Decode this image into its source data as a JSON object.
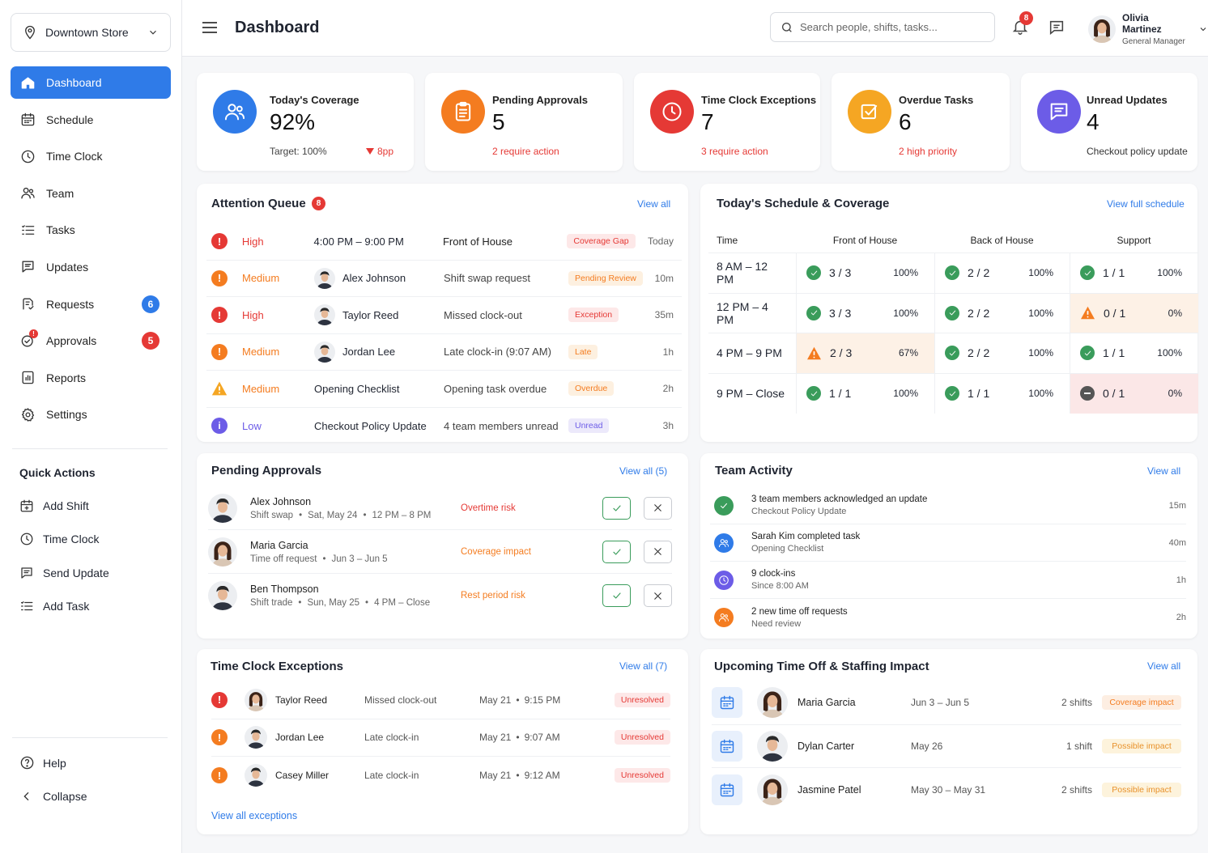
{
  "sidebar": {
    "store": "Downtown Store",
    "nav": [
      {
        "label": "Dashboard",
        "icon": "home-icon"
      },
      {
        "label": "Schedule",
        "icon": "calendar-icon"
      },
      {
        "label": "Time Clock",
        "icon": "clock-icon"
      },
      {
        "label": "Team",
        "icon": "team-icon"
      },
      {
        "label": "Tasks",
        "icon": "tasks-icon"
      },
      {
        "label": "Updates",
        "icon": "updates-icon"
      },
      {
        "label": "Requests",
        "icon": "requests-icon",
        "badge": "6"
      },
      {
        "label": "Approvals",
        "icon": "approvals-icon",
        "badge": "5",
        "dot": "!"
      },
      {
        "label": "Reports",
        "icon": "reports-icon"
      },
      {
        "label": "Settings",
        "icon": "gear-icon"
      }
    ],
    "quick_actions_title": "Quick Actions",
    "quick_actions": [
      {
        "label": "Add Shift",
        "icon": "calendar-add-icon"
      },
      {
        "label": "Time Clock",
        "icon": "clock-icon"
      },
      {
        "label": "Send Update",
        "icon": "send-update-icon"
      },
      {
        "label": "Add Task",
        "icon": "tasks-icon"
      }
    ],
    "help": "Help",
    "collapse": "Collapse"
  },
  "header": {
    "title": "Dashboard",
    "search_placeholder": "Search people, shifts, tasks...",
    "notif_count": "8",
    "user_name": "Olivia Martinez",
    "user_role": "General Manager"
  },
  "colors": {
    "blue": "#2f7be8",
    "orange": "#f47c20",
    "red": "#e53935",
    "amber": "#f5a623",
    "purple": "#6c5ce7",
    "green": "#3a9c5b"
  },
  "stats": [
    {
      "label": "Today's Coverage",
      "value": "92%",
      "sub": "Target: 100%",
      "delta": "8pp",
      "icon": "team-icon",
      "color": "#2f7be8"
    },
    {
      "label": "Pending Approvals",
      "value": "5",
      "sub": "2 require action",
      "icon": "clipboard-icon",
      "color": "#f47c20"
    },
    {
      "label": "Time Clock Exceptions",
      "value": "7",
      "sub": "3 require action",
      "icon": "clock-icon",
      "color": "#e53935"
    },
    {
      "label": "Overdue Tasks",
      "value": "6",
      "sub": "2 high priority",
      "icon": "checkbox-icon",
      "color": "#f5a623"
    },
    {
      "label": "Unread Updates",
      "value": "4",
      "sub": "Checkout policy update",
      "icon": "message-icon",
      "color": "#6c5ce7"
    }
  ],
  "attention": {
    "title": "Attention Queue",
    "count": "8",
    "view_all": "View all",
    "rows": [
      {
        "priority": "High",
        "kind": "exclaim",
        "who": "4:00 PM – 9:00 PM",
        "avatar": false,
        "what": "Front of House",
        "tag": "Coverage Gap",
        "tag_type": "red",
        "time": "Today"
      },
      {
        "priority": "Medium",
        "kind": "exclaim-orange",
        "who": "Alex Johnson",
        "avatar": true,
        "what": "Shift swap request",
        "tag": "Pending Review",
        "tag_type": "orange",
        "time": "10m"
      },
      {
        "priority": "High",
        "kind": "exclaim",
        "who": "Taylor Reed",
        "avatar": true,
        "what": "Missed clock-out",
        "tag": "Exception",
        "tag_type": "red",
        "time": "35m"
      },
      {
        "priority": "Medium",
        "kind": "exclaim-orange",
        "who": "Jordan Lee",
        "avatar": true,
        "what": "Late clock-in (9:07 AM)",
        "tag": "Late",
        "tag_type": "orange",
        "time": "1h"
      },
      {
        "priority": "Medium",
        "kind": "warning",
        "who": "Opening Checklist",
        "avatar": false,
        "what": "Opening task overdue",
        "tag": "Overdue",
        "tag_type": "orange",
        "time": "2h"
      },
      {
        "priority": "Low",
        "kind": "info",
        "who": "Checkout Policy Update",
        "avatar": false,
        "what": "4 team members unread",
        "tag": "Unread",
        "tag_type": "purple",
        "time": "3h"
      }
    ]
  },
  "schedule": {
    "title": "Today's Schedule & Coverage",
    "view_all": "View full schedule",
    "headers": [
      "Time",
      "Front of House",
      "Back of House",
      "Support"
    ],
    "rows": [
      {
        "time": "8 AM – 12 PM",
        "cells": [
          {
            "frac": "3 / 3",
            "pct": "100%",
            "status": "ok"
          },
          {
            "frac": "2 / 2",
            "pct": "100%",
            "status": "ok"
          },
          {
            "frac": "1 / 1",
            "pct": "100%",
            "status": "ok"
          }
        ]
      },
      {
        "time": "12 PM – 4 PM",
        "cells": [
          {
            "frac": "3 / 3",
            "pct": "100%",
            "status": "ok"
          },
          {
            "frac": "2 / 2",
            "pct": "100%",
            "status": "ok"
          },
          {
            "frac": "0 / 1",
            "pct": "0%",
            "status": "warn"
          }
        ]
      },
      {
        "time": "4 PM – 9 PM",
        "cells": [
          {
            "frac": "2 / 3",
            "pct": "67%",
            "status": "warn"
          },
          {
            "frac": "2 / 2",
            "pct": "100%",
            "status": "ok"
          },
          {
            "frac": "1 / 1",
            "pct": "100%",
            "status": "ok"
          }
        ]
      },
      {
        "time": "9 PM – Close",
        "cells": [
          {
            "frac": "1 / 1",
            "pct": "100%",
            "status": "ok"
          },
          {
            "frac": "1 / 1",
            "pct": "100%",
            "status": "ok"
          },
          {
            "frac": "0 / 1",
            "pct": "0%",
            "status": "bad"
          }
        ]
      }
    ]
  },
  "approvals": {
    "title": "Pending Approvals",
    "view_all": "View all (5)",
    "rows": [
      {
        "name": "Alex Johnson",
        "type": "Shift swap",
        "date": "Sat, May 24",
        "time": "12 PM – 8 PM",
        "risk": "Overtime risk",
        "risk_color": "#e53935",
        "gender": "m"
      },
      {
        "name": "Maria Garcia",
        "type": "Time off request",
        "date": "Jun 3 – Jun 5",
        "time": "",
        "risk": "Coverage impact",
        "risk_color": "#f47c20",
        "gender": "f"
      },
      {
        "name": "Ben Thompson",
        "type": "Shift trade",
        "date": "Sun, May 25",
        "time": "4 PM – Close",
        "risk": "Rest period risk",
        "risk_color": "#f47c20",
        "gender": "m"
      }
    ]
  },
  "activity": {
    "title": "Team Activity",
    "view_all": "View all",
    "rows": [
      {
        "title": "3 team members acknowledged an update",
        "sub": "Checkout Policy Update",
        "time": "15m",
        "icon": "check-icon",
        "color": "#3a9c5b"
      },
      {
        "title": "Sarah Kim completed task",
        "sub": "Opening Checklist",
        "time": "40m",
        "icon": "team-icon",
        "color": "#2f7be8"
      },
      {
        "title": "9 clock-ins",
        "sub": "Since 8:00 AM",
        "time": "1h",
        "icon": "clock-icon",
        "color": "#6c5ce7"
      },
      {
        "title": "2 new time off requests",
        "sub": "Need review",
        "time": "2h",
        "icon": "team-icon",
        "color": "#f47c20"
      }
    ]
  },
  "exceptions": {
    "title": "Time Clock Exceptions",
    "view_all": "View all (7)",
    "footer_link": "View all exceptions",
    "rows": [
      {
        "name": "Taylor Reed",
        "issue": "Missed clock-out",
        "date": "May 21",
        "time": "9:15 PM",
        "status": "Unresolved",
        "color": "#e53935",
        "gender": "f"
      },
      {
        "name": "Jordan Lee",
        "issue": "Late clock-in",
        "date": "May 21",
        "time": "9:07 AM",
        "status": "Unresolved",
        "color": "#f47c20",
        "gender": "m"
      },
      {
        "name": "Casey Miller",
        "issue": "Late clock-in",
        "date": "May 21",
        "time": "9:12 AM",
        "status": "Unresolved",
        "color": "#f47c20",
        "gender": "m"
      }
    ]
  },
  "timeoff": {
    "title": "Upcoming Time Off & Staffing Impact",
    "view_all": "View all",
    "rows": [
      {
        "name": "Maria Garcia",
        "dates": "Jun 3 – Jun 5",
        "shifts": "2 shifts",
        "impact": "Coverage impact",
        "gender": "f"
      },
      {
        "name": "Dylan Carter",
        "dates": "May 26",
        "shifts": "1 shift",
        "impact": "Possible impact",
        "gender": "m"
      },
      {
        "name": "Jasmine Patel",
        "dates": "May 30 – May 31",
        "shifts": "2 shifts",
        "impact": "Possible impact",
        "gender": "f"
      }
    ]
  }
}
